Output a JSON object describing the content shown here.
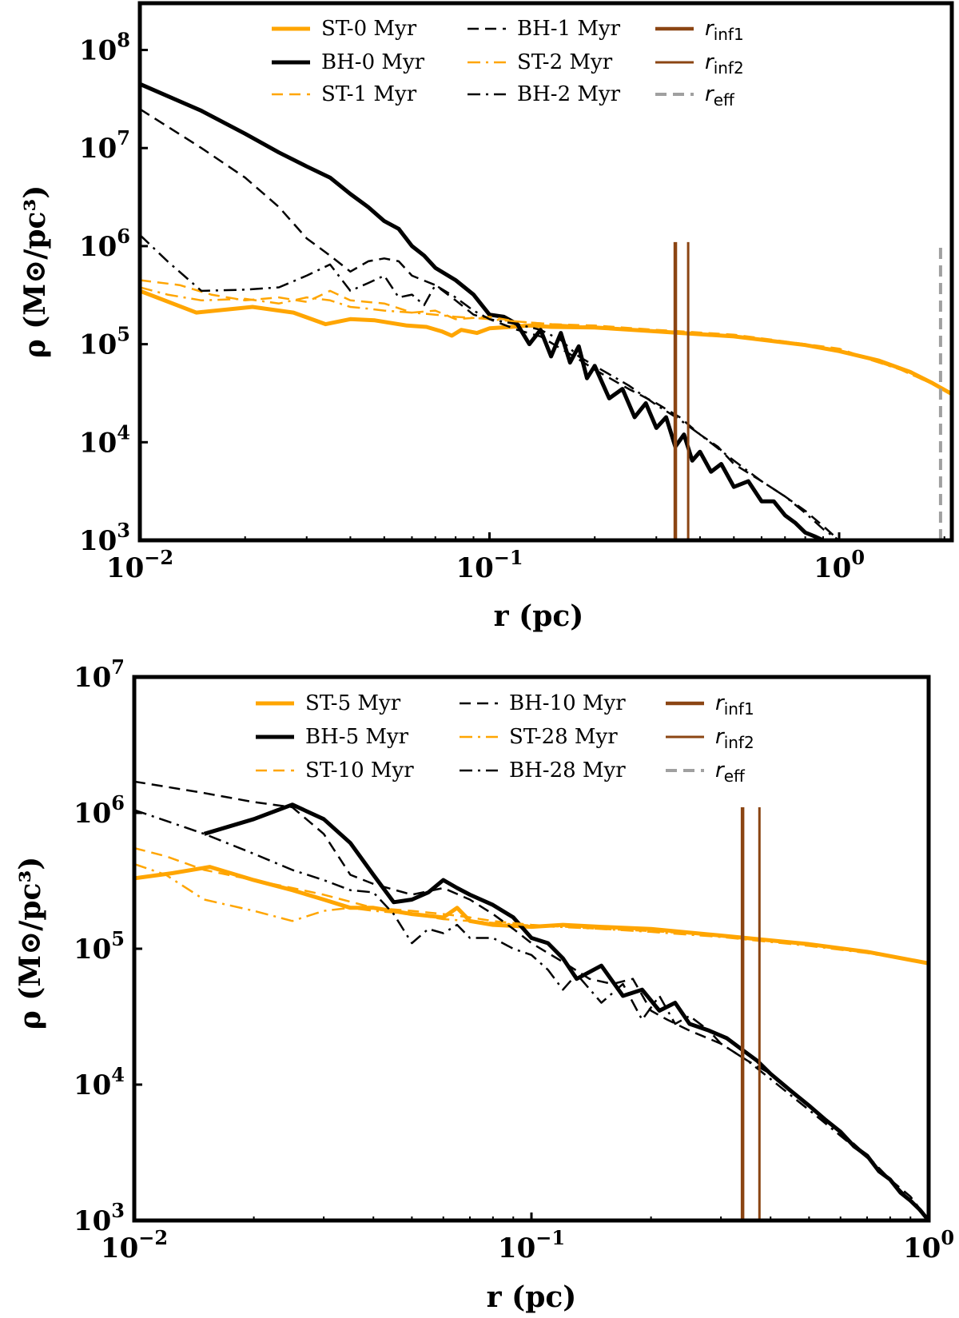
{
  "colors": {
    "star": "#FFA500",
    "bh": "#000000",
    "rinf": "#8B4513",
    "reff": "#A0A0A0"
  },
  "chart_data": [
    {
      "type": "line",
      "panel": "top",
      "xlabel": "r (pc)",
      "ylabel": "ρ (M⊙/pc³)",
      "xscale": "log",
      "yscale": "log",
      "xlim": [
        0.01,
        2.1
      ],
      "ylim": [
        1000,
        300000000
      ],
      "x_ticks": [
        {
          "value": 0.01,
          "base": "10",
          "exp": "−2"
        },
        {
          "value": 0.1,
          "base": "10",
          "exp": "−1"
        },
        {
          "value": 1,
          "base": "10",
          "exp": "0"
        }
      ],
      "y_ticks": [
        {
          "value": 1000,
          "base": "10",
          "exp": "3"
        },
        {
          "value": 10000,
          "base": "10",
          "exp": "4"
        },
        {
          "value": 100000,
          "base": "10",
          "exp": "5"
        },
        {
          "value": 1000000,
          "base": "10",
          "exp": "6"
        },
        {
          "value": 10000000,
          "base": "10",
          "exp": "7"
        },
        {
          "value": 100000000,
          "base": "10",
          "exp": "8"
        }
      ],
      "series": [
        {
          "name": "ST-0 Myr",
          "kind": "star",
          "style": "solid",
          "width": 5,
          "x": [
            0.01,
            0.0145,
            0.021,
            0.0275,
            0.034,
            0.04,
            0.047,
            0.058,
            0.066,
            0.073,
            0.078,
            0.083,
            0.092,
            0.1,
            0.115,
            0.13,
            0.15,
            0.2,
            0.3,
            0.5,
            0.8,
            1.0,
            1.3,
            1.6,
            1.85,
            2.1
          ],
          "y": [
            350000,
            210000,
            240000,
            210000,
            160000,
            180000,
            175000,
            155000,
            150000,
            135000,
            122000,
            140000,
            130000,
            145000,
            150000,
            155000,
            150000,
            148000,
            135000,
            120000,
            98000,
            85000,
            68000,
            52000,
            40000,
            31000
          ]
        },
        {
          "name": "BH-0 Myr",
          "kind": "bh",
          "style": "solid",
          "width": 5,
          "x": [
            0.01,
            0.015,
            0.02,
            0.025,
            0.03,
            0.035,
            0.04,
            0.045,
            0.05,
            0.055,
            0.06,
            0.065,
            0.07,
            0.08,
            0.09,
            0.1,
            0.11,
            0.12,
            0.13,
            0.14,
            0.15,
            0.16,
            0.17,
            0.18,
            0.19,
            0.2,
            0.22,
            0.24,
            0.26,
            0.28,
            0.3,
            0.32,
            0.34,
            0.36,
            0.38,
            0.4,
            0.43,
            0.46,
            0.5,
            0.55,
            0.6,
            0.65,
            0.7,
            0.75,
            0.8,
            0.85,
            0.9
          ],
          "y": [
            45000000,
            24000000,
            14000000,
            9000000,
            6500000,
            5000000,
            3400000,
            2500000,
            1800000,
            1500000,
            1000000,
            800000,
            600000,
            450000,
            320000,
            200000,
            190000,
            160000,
            100000,
            140000,
            75000,
            130000,
            65000,
            95000,
            45000,
            60000,
            28000,
            35000,
            18000,
            25000,
            14000,
            18000,
            9000,
            12000,
            6500,
            8000,
            5000,
            6000,
            3500,
            4000,
            2500,
            2500,
            1800,
            1500,
            1200,
            1100,
            1000
          ]
        },
        {
          "name": "ST-1 Myr",
          "kind": "star",
          "style": "dashed",
          "width": 2.5,
          "x": [
            0.01,
            0.013,
            0.016,
            0.02,
            0.025,
            0.03,
            0.035,
            0.04,
            0.05,
            0.06,
            0.07,
            0.08,
            0.1,
            0.12,
            0.15,
            0.2,
            0.3,
            0.5,
            1.0,
            1.5,
            2.1
          ],
          "y": [
            450000,
            400000,
            320000,
            280000,
            300000,
            270000,
            350000,
            280000,
            260000,
            210000,
            220000,
            180000,
            190000,
            170000,
            160000,
            155000,
            140000,
            125000,
            90000,
            55000,
            32000
          ]
        },
        {
          "name": "BH-1 Myr",
          "kind": "bh",
          "style": "dashed",
          "width": 2.5,
          "x": [
            0.01,
            0.015,
            0.02,
            0.025,
            0.03,
            0.035,
            0.04,
            0.045,
            0.05,
            0.055,
            0.06,
            0.07,
            0.08,
            0.09,
            0.1,
            0.12,
            0.14,
            0.16,
            0.18,
            0.2,
            0.25,
            0.3,
            0.35,
            0.4,
            0.45,
            0.5,
            0.6,
            0.7,
            0.8,
            0.9,
            1.0
          ],
          "y": [
            25000000,
            10000000,
            5000000,
            2500000,
            1200000,
            800000,
            550000,
            700000,
            750000,
            700000,
            500000,
            400000,
            280000,
            200000,
            180000,
            140000,
            120000,
            90000,
            70000,
            55000,
            35000,
            25000,
            18000,
            12000,
            9000,
            6000,
            4000,
            2800,
            2000,
            1400,
            1000
          ]
        },
        {
          "name": "ST-2 Myr",
          "kind": "star",
          "style": "dashdot",
          "width": 2.5,
          "x": [
            0.01,
            0.012,
            0.015,
            0.02,
            0.025,
            0.03,
            0.035,
            0.04,
            0.045,
            0.05,
            0.06,
            0.07,
            0.08,
            0.09,
            0.1,
            0.12,
            0.15,
            0.2,
            0.3,
            0.5,
            1.0,
            1.5,
            2.1
          ],
          "y": [
            380000,
            320000,
            280000,
            290000,
            260000,
            300000,
            280000,
            240000,
            230000,
            220000,
            210000,
            200000,
            190000,
            185000,
            180000,
            170000,
            160000,
            150000,
            138000,
            120000,
            88000,
            55000,
            32000
          ]
        },
        {
          "name": "BH-2 Myr",
          "kind": "bh",
          "style": "dashdot",
          "width": 2.5,
          "x": [
            0.01,
            0.012,
            0.015,
            0.02,
            0.025,
            0.03,
            0.035,
            0.04,
            0.045,
            0.05,
            0.055,
            0.06,
            0.065,
            0.07,
            0.08,
            0.09,
            0.1,
            0.12,
            0.14,
            0.16,
            0.18,
            0.2,
            0.25,
            0.3,
            0.35,
            0.4,
            0.5,
            0.6,
            0.7,
            0.8,
            0.9,
            1.0
          ],
          "y": [
            1300000,
            700000,
            350000,
            360000,
            380000,
            500000,
            650000,
            350000,
            420000,
            500000,
            300000,
            320000,
            250000,
            400000,
            300000,
            220000,
            180000,
            160000,
            140000,
            110000,
            75000,
            60000,
            38000,
            24000,
            17000,
            12000,
            6500,
            4000,
            2800,
            1900,
            1300,
            1000
          ]
        }
      ],
      "vlines": [
        {
          "name": "r_inf1",
          "label": "r",
          "sub": "inf1",
          "x": 0.34,
          "kind": "rinf",
          "style": "solid",
          "width": 4.5
        },
        {
          "name": "r_inf2",
          "label": "r",
          "sub": "inf2",
          "x": 0.37,
          "kind": "rinf",
          "style": "solid",
          "width": 3
        },
        {
          "name": "r_eff",
          "label": "r",
          "sub": "eff",
          "x": 1.95,
          "kind": "reff",
          "style": "dashed",
          "width": 4
        }
      ],
      "vline_top": 1100000
    },
    {
      "type": "line",
      "panel": "bottom",
      "xlabel": "r (pc)",
      "ylabel": "ρ (M⊙/pc³)",
      "xscale": "log",
      "yscale": "log",
      "xlim": [
        0.01,
        1.0
      ],
      "ylim": [
        1000,
        10000000
      ],
      "x_ticks": [
        {
          "value": 0.01,
          "base": "10",
          "exp": "−2"
        },
        {
          "value": 0.1,
          "base": "10",
          "exp": "−1"
        },
        {
          "value": 1,
          "base": "10",
          "exp": "0"
        }
      ],
      "y_ticks": [
        {
          "value": 1000,
          "base": "10",
          "exp": "3"
        },
        {
          "value": 10000,
          "base": "10",
          "exp": "4"
        },
        {
          "value": 100000,
          "base": "10",
          "exp": "5"
        },
        {
          "value": 1000000,
          "base": "10",
          "exp": "6"
        },
        {
          "value": 10000000,
          "base": "10",
          "exp": "7"
        }
      ],
      "series": [
        {
          "name": "ST-5 Myr",
          "kind": "star",
          "style": "solid",
          "width": 5,
          "x": [
            0.01,
            0.0125,
            0.0155,
            0.02,
            0.025,
            0.03,
            0.035,
            0.04,
            0.05,
            0.06,
            0.065,
            0.07,
            0.08,
            0.1,
            0.12,
            0.15,
            0.2,
            0.3,
            0.5,
            0.7,
            1.0
          ],
          "y": [
            330000,
            360000,
            400000,
            320000,
            270000,
            230000,
            200000,
            200000,
            180000,
            170000,
            200000,
            160000,
            150000,
            145000,
            150000,
            145000,
            140000,
            125000,
            108000,
            95000,
            78000
          ]
        },
        {
          "name": "BH-5 Myr",
          "kind": "bh",
          "style": "solid",
          "width": 5,
          "x": [
            0.015,
            0.02,
            0.025,
            0.03,
            0.035,
            0.04,
            0.045,
            0.05,
            0.055,
            0.06,
            0.065,
            0.07,
            0.08,
            0.09,
            0.1,
            0.11,
            0.12,
            0.13,
            0.15,
            0.17,
            0.19,
            0.21,
            0.23,
            0.25,
            0.28,
            0.31,
            0.34,
            0.37,
            0.4,
            0.45,
            0.5,
            0.55,
            0.6,
            0.65,
            0.7,
            0.75,
            0.8,
            0.85,
            0.9,
            0.95,
            1.0
          ],
          "y": [
            700000,
            900000,
            1150000,
            900000,
            600000,
            350000,
            220000,
            230000,
            260000,
            320000,
            280000,
            250000,
            210000,
            170000,
            120000,
            110000,
            85000,
            60000,
            75000,
            45000,
            50000,
            35000,
            40000,
            28000,
            25000,
            22000,
            18000,
            15000,
            12000,
            9000,
            7000,
            5500,
            4500,
            3500,
            3000,
            2300,
            2000,
            1600,
            1400,
            1200,
            1000
          ]
        },
        {
          "name": "ST-10 Myr",
          "kind": "star",
          "style": "dashed",
          "width": 2.5,
          "x": [
            0.01,
            0.012,
            0.015,
            0.02,
            0.025,
            0.03,
            0.04,
            0.05,
            0.06,
            0.07,
            0.08,
            0.1,
            0.15,
            0.2,
            0.3,
            0.5,
            0.7,
            1.0
          ],
          "y": [
            550000,
            480000,
            380000,
            320000,
            280000,
            250000,
            200000,
            190000,
            180000,
            170000,
            160000,
            150000,
            140000,
            135000,
            125000,
            108000,
            95000,
            78000
          ]
        },
        {
          "name": "BH-10 Myr",
          "kind": "bh",
          "style": "dashed",
          "width": 2.5,
          "x": [
            0.01,
            0.015,
            0.02,
            0.025,
            0.03,
            0.035,
            0.04,
            0.05,
            0.06,
            0.07,
            0.08,
            0.09,
            0.1,
            0.12,
            0.14,
            0.16,
            0.18,
            0.2,
            0.22,
            0.25,
            0.3,
            0.35,
            0.4,
            0.5,
            0.6,
            0.7,
            0.8,
            0.9,
            1.0
          ],
          "y": [
            1700000,
            1400000,
            1200000,
            1100000,
            700000,
            350000,
            300000,
            250000,
            280000,
            230000,
            180000,
            140000,
            110000,
            80000,
            60000,
            55000,
            60000,
            35000,
            30000,
            25000,
            20000,
            15000,
            12000,
            7000,
            4500,
            3000,
            2000,
            1500,
            1000
          ]
        },
        {
          "name": "ST-28 Myr",
          "kind": "star",
          "style": "dashdot",
          "width": 2.5,
          "x": [
            0.01,
            0.012,
            0.015,
            0.02,
            0.025,
            0.03,
            0.035,
            0.04,
            0.05,
            0.06,
            0.07,
            0.08,
            0.1,
            0.15,
            0.2,
            0.3,
            0.5,
            0.7,
            1.0
          ],
          "y": [
            420000,
            350000,
            230000,
            190000,
            160000,
            190000,
            200000,
            190000,
            180000,
            165000,
            160000,
            155000,
            148000,
            140000,
            133000,
            122000,
            105000,
            93000,
            78000
          ]
        },
        {
          "name": "BH-28 Myr",
          "kind": "bh",
          "style": "dashdot",
          "width": 2.5,
          "x": [
            0.01,
            0.015,
            0.02,
            0.025,
            0.03,
            0.035,
            0.04,
            0.045,
            0.05,
            0.055,
            0.06,
            0.065,
            0.07,
            0.08,
            0.09,
            0.1,
            0.11,
            0.12,
            0.13,
            0.15,
            0.17,
            0.19,
            0.21,
            0.23,
            0.25,
            0.28,
            0.3,
            0.35,
            0.4,
            0.5,
            0.6,
            0.7,
            0.8,
            0.9,
            1.0
          ],
          "y": [
            1050000,
            700000,
            500000,
            380000,
            320000,
            270000,
            260000,
            180000,
            110000,
            140000,
            130000,
            150000,
            120000,
            120000,
            100000,
            90000,
            70000,
            50000,
            65000,
            40000,
            55000,
            30000,
            45000,
            28000,
            32000,
            25000,
            20000,
            15000,
            11000,
            6500,
            4200,
            2900,
            2000,
            1400,
            1000
          ]
        }
      ],
      "vlines": [
        {
          "name": "r_inf1",
          "label": "r",
          "sub": "inf1",
          "x": 0.34,
          "kind": "rinf",
          "style": "solid",
          "width": 4.5
        },
        {
          "name": "r_inf2",
          "label": "r",
          "sub": "inf2",
          "x": 0.375,
          "kind": "rinf",
          "style": "solid",
          "width": 3
        }
      ],
      "vline_top": 1100000,
      "legend_extra": [
        {
          "name": "r_eff",
          "label": "r",
          "sub": "eff",
          "kind": "reff",
          "style": "dashed",
          "width": 4
        }
      ]
    }
  ]
}
